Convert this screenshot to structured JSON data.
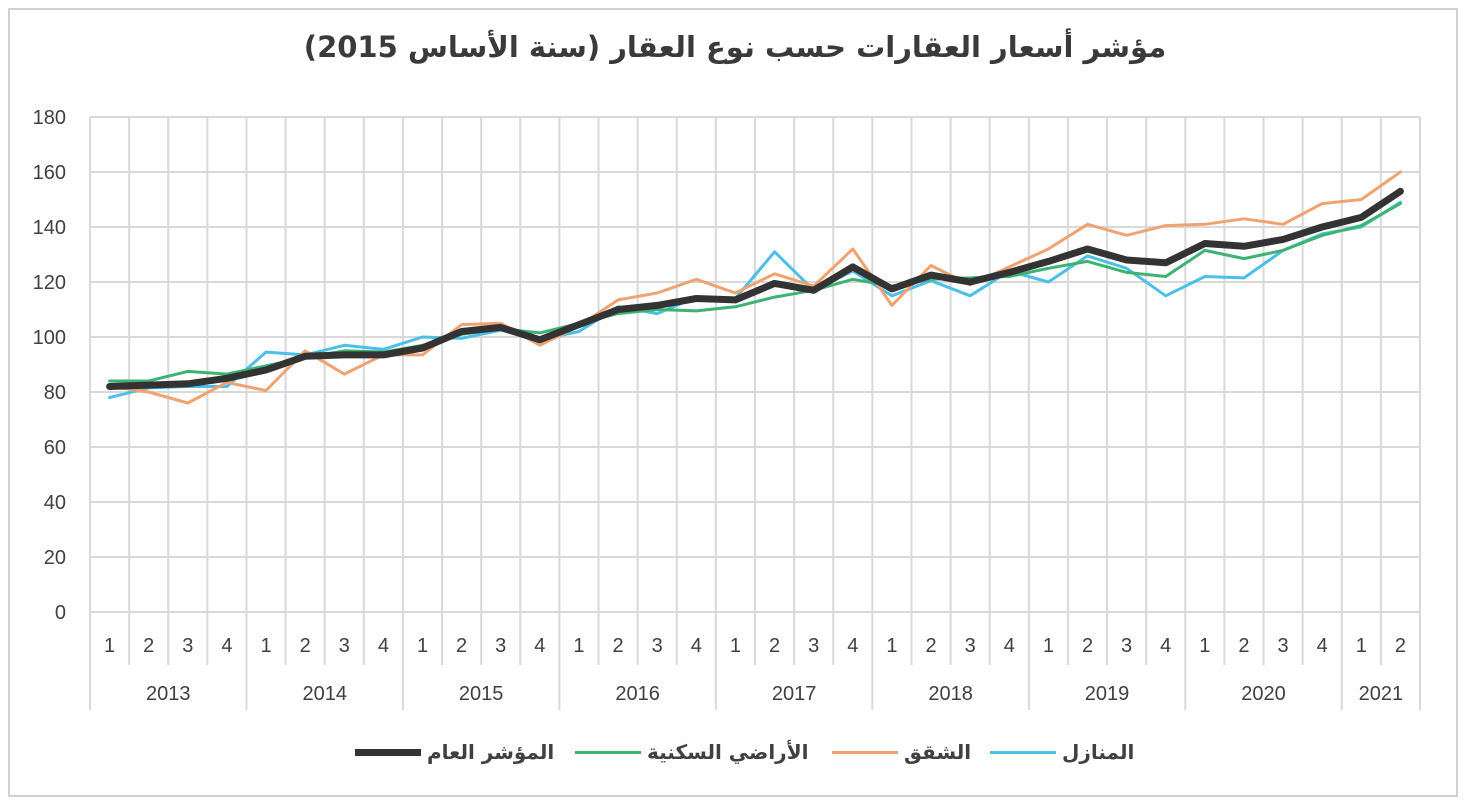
{
  "chart_data": {
    "type": "line",
    "title": "مؤشر أسعار العقارات حسب نوع العقار (سنة الأساس 2015)",
    "ylim": [
      0,
      180
    ],
    "yticks": [
      "0",
      "20",
      "40",
      "60",
      "80",
      "100",
      "120",
      "140",
      "160",
      "180"
    ],
    "quarters": [
      "1",
      "2",
      "3",
      "4",
      "1",
      "2",
      "3",
      "4",
      "1",
      "2",
      "3",
      "4",
      "1",
      "2",
      "3",
      "4",
      "1",
      "2",
      "3",
      "4",
      "1",
      "2",
      "3",
      "4",
      "1",
      "2",
      "3",
      "4",
      "1",
      "2",
      "3",
      "4",
      "1",
      "2"
    ],
    "years": [
      {
        "label": "2013",
        "count": 4
      },
      {
        "label": "2014",
        "count": 4
      },
      {
        "label": "2015",
        "count": 4
      },
      {
        "label": "2016",
        "count": 4
      },
      {
        "label": "2017",
        "count": 4
      },
      {
        "label": "2018",
        "count": 4
      },
      {
        "label": "2019",
        "count": 4
      },
      {
        "label": "2020",
        "count": 4
      },
      {
        "label": "2021",
        "count": 2
      }
    ],
    "grid": true,
    "legend_position": "bottom",
    "series": [
      {
        "name": "المنازل",
        "color": "#4cbfe8",
        "width": 3,
        "values": [
          78,
          81.5,
          82,
          82,
          94.5,
          93.5,
          97,
          95.5,
          100,
          99.5,
          102.5,
          99,
          102,
          111,
          108.5,
          114.5,
          114,
          131,
          117,
          124,
          115,
          120.5,
          115,
          124,
          120,
          129.5,
          125,
          115,
          122,
          121.5,
          131.5,
          137.5,
          140,
          149
        ]
      },
      {
        "name": "الشقق",
        "color": "#f0a370",
        "width": 3,
        "values": [
          82,
          80,
          76,
          83.5,
          80.5,
          95,
          86.5,
          93.5,
          93.5,
          104.5,
          105,
          97,
          104,
          113.5,
          116,
          121,
          116,
          123,
          118.5,
          132,
          111.5,
          126,
          119,
          125.5,
          132,
          141,
          137,
          140.5,
          141,
          143,
          141,
          148.5,
          150,
          160
        ]
      },
      {
        "name": "الأراضي السكنية",
        "color": "#3cb371",
        "width": 3,
        "values": [
          84,
          84,
          87.5,
          86.5,
          89.5,
          92.5,
          95,
          94.5,
          97,
          101,
          103,
          101.5,
          105,
          108.5,
          110,
          109.5,
          111,
          114.5,
          117,
          121,
          118.5,
          121,
          121.5,
          122,
          125,
          127.5,
          123.5,
          122,
          131.5,
          128.5,
          131.5,
          137,
          140.5,
          148.5
        ]
      },
      {
        "name": "المؤشر العام",
        "color": "#333333",
        "width": 7,
        "values": [
          82,
          82.5,
          83,
          85,
          88,
          93,
          93.5,
          93.5,
          96,
          102,
          103.5,
          99,
          104.5,
          110,
          111.5,
          114,
          113.5,
          119.5,
          117,
          125.5,
          117.5,
          122.5,
          120,
          123.5,
          127.5,
          132,
          128,
          127,
          134,
          133,
          135.5,
          140,
          143.5,
          153
        ]
      }
    ]
  }
}
